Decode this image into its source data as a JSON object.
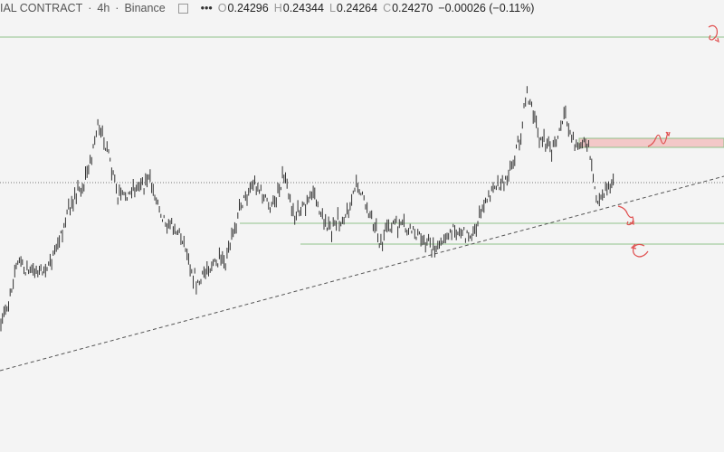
{
  "header": {
    "symbol": "IAL CONTRACT",
    "interval": "4h",
    "exchange": "Binance",
    "open_label": "O",
    "open": "0.24296",
    "high_label": "H",
    "high": "0.24344",
    "low_label": "L",
    "low": "0.24264",
    "close_label": "C",
    "close": "0.24270",
    "change": "−0.00026 (−0.11%)"
  }
}
